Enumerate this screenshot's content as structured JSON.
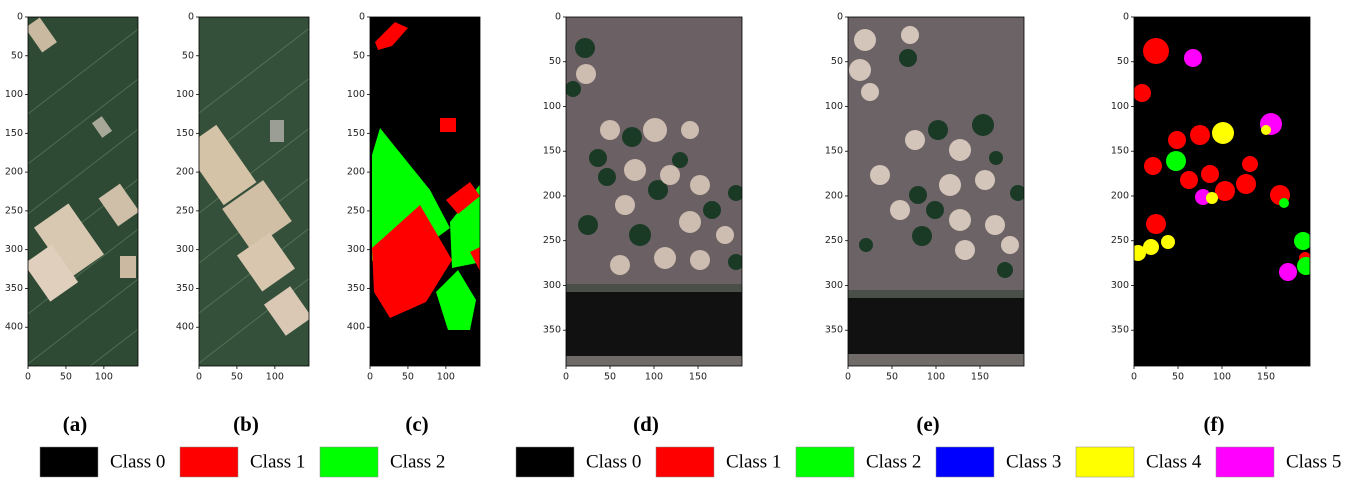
{
  "panels": [
    {
      "label": "(a)",
      "xlim": [
        0,
        145
      ],
      "ylim": [
        0,
        450
      ],
      "xticks": [
        0,
        50,
        100
      ],
      "yticks": [
        0,
        50,
        100,
        150,
        200,
        250,
        300,
        350,
        400
      ]
    },
    {
      "label": "(b)",
      "xlim": [
        0,
        145
      ],
      "ylim": [
        0,
        450
      ],
      "xticks": [
        0,
        50,
        100
      ],
      "yticks": [
        0,
        50,
        100,
        150,
        200,
        250,
        300,
        350,
        400
      ]
    },
    {
      "label": "(c)",
      "xlim": [
        0,
        145
      ],
      "ylim": [
        0,
        450
      ],
      "xticks": [
        0,
        50,
        100
      ],
      "yticks": [
        0,
        50,
        100,
        150,
        200,
        250,
        300,
        350,
        400
      ]
    },
    {
      "label": "(d)",
      "xlim": [
        0,
        200
      ],
      "ylim": [
        0,
        390
      ],
      "xticks": [
        0,
        50,
        100,
        150
      ],
      "yticks": [
        0,
        50,
        100,
        150,
        200,
        250,
        300,
        350
      ]
    },
    {
      "label": "(e)",
      "xlim": [
        0,
        200
      ],
      "ylim": [
        0,
        390
      ],
      "xticks": [
        0,
        50,
        100,
        150
      ],
      "yticks": [
        0,
        50,
        100,
        150,
        200,
        250,
        300,
        350
      ]
    },
    {
      "label": "(f)",
      "xlim": [
        0,
        200
      ],
      "ylim": [
        0,
        390
      ],
      "xticks": [
        0,
        50,
        100,
        150
      ],
      "yticks": [
        0,
        50,
        100,
        150,
        200,
        250,
        300,
        350
      ]
    }
  ],
  "legends": [
    {
      "items": [
        {
          "name": "Class 0",
          "color": "#000000"
        },
        {
          "name": "Class 1",
          "color": "#ff0000"
        },
        {
          "name": "Class 2",
          "color": "#00ff00"
        }
      ]
    },
    {
      "items": [
        {
          "name": "Class 0",
          "color": "#000000"
        },
        {
          "name": "Class 1",
          "color": "#ff0000"
        },
        {
          "name": "Class 2",
          "color": "#00ff00"
        },
        {
          "name": "Class 3",
          "color": "#0000ff"
        },
        {
          "name": "Class 4",
          "color": "#ffff00"
        },
        {
          "name": "Class 5",
          "color": "#ff00ff"
        }
      ]
    }
  ]
}
